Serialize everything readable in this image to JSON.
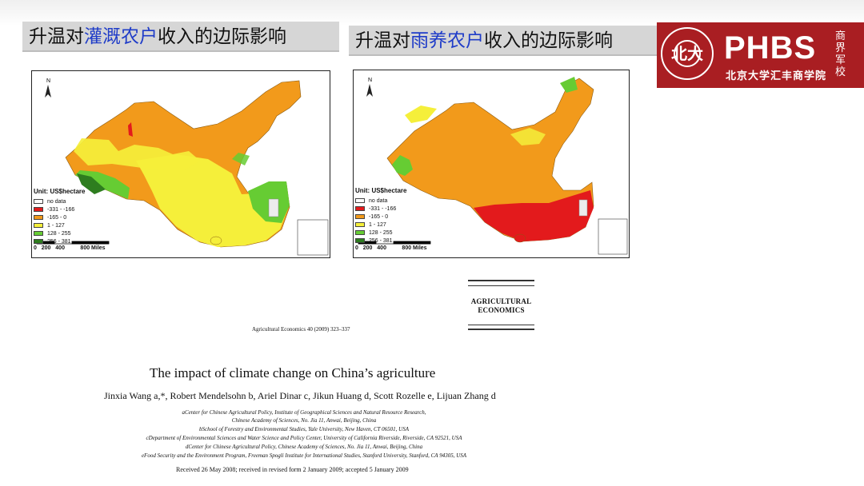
{
  "titles": {
    "left": {
      "prefix": "升温对",
      "highlight": "灌溉农户",
      "suffix": "收入的边际影响"
    },
    "right": {
      "prefix": "升温对",
      "highlight": "雨养农户",
      "suffix": "收入的边际影响"
    }
  },
  "logo": {
    "brand": "PHBS",
    "subtitle": "北京大学汇丰商学院",
    "seal_glyph": "北大",
    "calligraphy": "商界军校"
  },
  "maps": {
    "north_label": "N",
    "legend": {
      "unit": "Unit: US$hectare",
      "entries": [
        {
          "label": "no data",
          "color": "#ffffff"
        },
        {
          "label": "-331 - -166",
          "color": "#e31a1c"
        },
        {
          "label": "-165 - 0",
          "color": "#f29a1b"
        },
        {
          "label": "1 - 127",
          "color": "#f5ef3a"
        },
        {
          "label": "128 - 255",
          "color": "#66cc33"
        },
        {
          "label": "256 - 381",
          "color": "#2e7d1f"
        }
      ]
    },
    "scale": {
      "t0": "0",
      "t1": "200",
      "t2": "400",
      "t3": "800 Miles"
    }
  },
  "paper": {
    "journal": "AGRICULTURAL ECONOMICS",
    "citation": "Agricultural Economics 40 (2009) 323–337",
    "title": "The impact of climate change on China’s agriculture",
    "authors": "Jinxia Wang a,*, Robert Mendelsohn b, Ariel Dinar c, Jikun Huang d, Scott Rozelle e, Lijuan Zhang d",
    "affiliations": [
      "aCenter for Chinese Agricultural Policy, Institute of Geographical Sciences and Natural Resource Research,",
      "Chinese Academy of Sciences, No. Jia 11, Anwai, Beijing, China",
      "bSchool of Forestry and Environmental Studies, Yale University, New Haven, CT 06501, USA",
      "cDepartment of Environmental Sciences and Water Science and Policy Center, University of California Riverside, Riverside, CA 92521, USA",
      "dCenter for Chinese Agricultural Policy, Chinese Academy of Sciences, No. Jia 11, Anwai, Beijing, China",
      "eFood Security and the Environment Program, Freeman Spogli Institute for International Studies, Stanford University, Stanford, CA 94305, USA"
    ],
    "received": "Received 26 May 2008; received in revised form 2 January 2009; accepted 5 January 2009"
  }
}
